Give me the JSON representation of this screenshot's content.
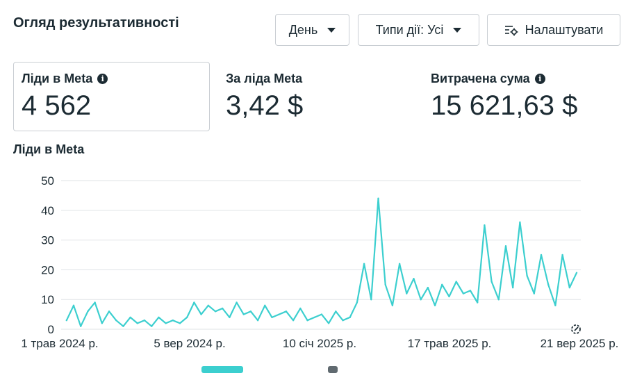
{
  "header": {
    "title": "Огляд результативності",
    "period_label": "День",
    "action_types_label": "Типи дії: Усі",
    "settings_label": "Налаштувати"
  },
  "metrics": [
    {
      "label": "Ліди в Meta",
      "value": "4 562"
    },
    {
      "label": "За ліда Meta",
      "value": "3,42 $"
    },
    {
      "label": "Витрачена сума",
      "value": "15 621,63 $"
    }
  ],
  "colors": {
    "series": "#3ccfcf",
    "text": "#1c2b33",
    "grid": "#dfe3e6"
  },
  "chart_data": {
    "type": "line",
    "title": "Ліди в Meta",
    "xlabel": "",
    "ylabel": "",
    "ylim": [
      0,
      50
    ],
    "y_ticks": [
      0,
      10,
      20,
      30,
      40,
      50
    ],
    "x_tick_labels": [
      "1 трав 2024 р.",
      "5 вер 2024 р.",
      "10 січ 2025 р.",
      "17 трав 2025 р.",
      "21 вер 2025 р."
    ],
    "x_tick_dates": [
      "2024-05-01",
      "2024-09-05",
      "2025-01-10",
      "2025-05-17",
      "2025-09-21"
    ],
    "grid": true,
    "series": [
      {
        "x": [
          "2024-05-05",
          "2024-05-12",
          "2024-05-19",
          "2024-05-26",
          "2024-06-02",
          "2024-06-09",
          "2024-06-16",
          "2024-06-23",
          "2024-06-30",
          "2024-07-07",
          "2024-07-14",
          "2024-07-21",
          "2024-07-28",
          "2024-08-04",
          "2024-08-11",
          "2024-08-18",
          "2024-08-25",
          "2024-09-01",
          "2024-09-08",
          "2024-09-15",
          "2024-09-22",
          "2024-09-29",
          "2024-10-06",
          "2024-10-13",
          "2024-10-20",
          "2024-10-27",
          "2024-11-03",
          "2024-11-10",
          "2024-11-17",
          "2024-11-24",
          "2024-12-01",
          "2024-12-08",
          "2024-12-15",
          "2024-12-22",
          "2024-12-29",
          "2025-01-05",
          "2025-01-12",
          "2025-01-19",
          "2025-01-26",
          "2025-02-02",
          "2025-02-09",
          "2025-02-16",
          "2025-02-23",
          "2025-03-02",
          "2025-03-09",
          "2025-03-16",
          "2025-03-23",
          "2025-03-30",
          "2025-04-06",
          "2025-04-13",
          "2025-04-20",
          "2025-04-27",
          "2025-05-04",
          "2025-05-11",
          "2025-05-18",
          "2025-05-25",
          "2025-06-01",
          "2025-06-08",
          "2025-06-15",
          "2025-06-22",
          "2025-06-29",
          "2025-07-06",
          "2025-07-13",
          "2025-07-20",
          "2025-07-27",
          "2025-08-03",
          "2025-08-10",
          "2025-08-17",
          "2025-08-24",
          "2025-08-31",
          "2025-09-07",
          "2025-09-14",
          "2025-09-21"
        ],
        "values": [
          3,
          8,
          1,
          6,
          9,
          2,
          6,
          3,
          1,
          4,
          2,
          3,
          1,
          4,
          2,
          3,
          2,
          4,
          9,
          5,
          8,
          6,
          7,
          4,
          9,
          5,
          6,
          3,
          8,
          4,
          5,
          6,
          3,
          7,
          3,
          4,
          5,
          2,
          6,
          3,
          4,
          9,
          22,
          10,
          44,
          15,
          8,
          22,
          12,
          17,
          10,
          14,
          8,
          15,
          11,
          16,
          12,
          13,
          9,
          35,
          16,
          10,
          28,
          14,
          36,
          18,
          12,
          25,
          15,
          8,
          25,
          14,
          19
        ]
      }
    ]
  }
}
